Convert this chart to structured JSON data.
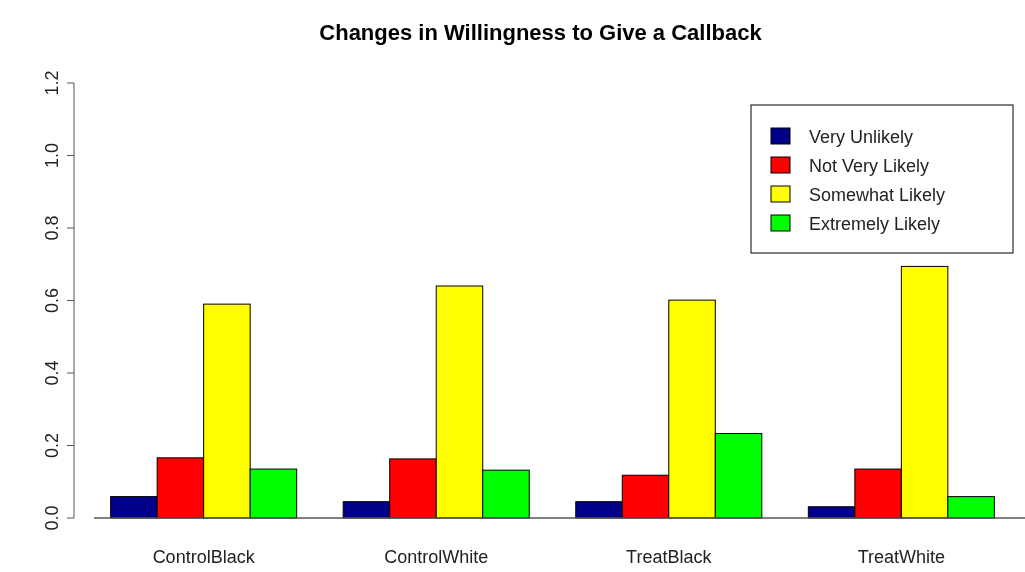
{
  "chart_data": {
    "type": "bar",
    "title": "Changes in Willingness to Give a Callback",
    "categories": [
      "ControlBlack",
      "ControlWhite",
      "TreatBlack",
      "TreatWhite"
    ],
    "series": [
      {
        "name": "Very Unlikely",
        "color": "#00008b",
        "values": [
          0.059,
          0.045,
          0.045,
          0.031
        ]
      },
      {
        "name": "Not Very Likely",
        "color": "#ff0000",
        "values": [
          0.166,
          0.163,
          0.118,
          0.135
        ]
      },
      {
        "name": "Somewhat Likely",
        "color": "#ffff00",
        "values": [
          0.59,
          0.64,
          0.601,
          0.694
        ]
      },
      {
        "name": "Extremely Likely",
        "color": "#00ff00",
        "values": [
          0.135,
          0.132,
          0.233,
          0.059
        ]
      }
    ],
    "ylim": [
      0,
      1.2
    ],
    "yticks": [
      {
        "value": 0,
        "label": "0.0"
      },
      0.2,
      0.4,
      0.6,
      0.8,
      {
        "value": 1,
        "label": "1.0"
      },
      1.2
    ],
    "legend": "top right",
    "grid": false
  }
}
